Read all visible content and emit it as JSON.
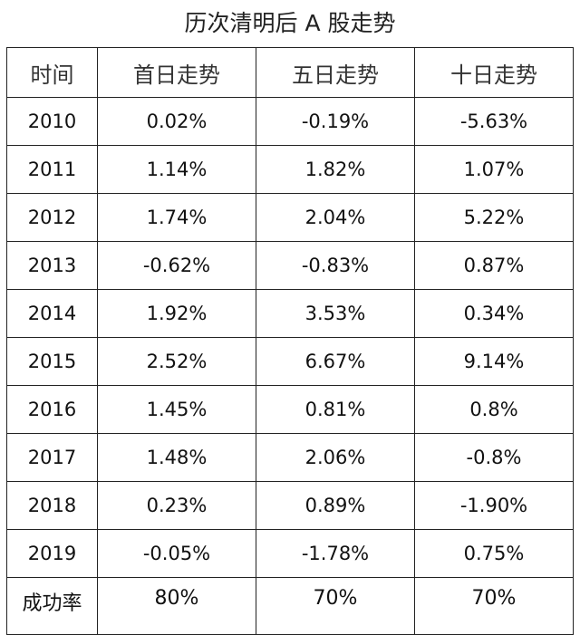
{
  "title": "历次清明后 A 股走势",
  "headers": [
    "时间",
    "首日走势",
    "五日走势",
    "十日走势"
  ],
  "rows": [
    {
      "year": "2010",
      "day1": "0.02%",
      "day5": "-0.19%",
      "day10": "-5.63%"
    },
    {
      "year": "2011",
      "day1": "1.14%",
      "day5": "1.82%",
      "day10": "1.07%"
    },
    {
      "year": "2012",
      "day1": "1.74%",
      "day5": "2.04%",
      "day10": "5.22%"
    },
    {
      "year": "2013",
      "day1": "-0.62%",
      "day5": "-0.83%",
      "day10": "0.87%"
    },
    {
      "year": "2014",
      "day1": "1.92%",
      "day5": "3.53%",
      "day10": "0.34%"
    },
    {
      "year": "2015",
      "day1": "2.52%",
      "day5": "6.67%",
      "day10": "9.14%"
    },
    {
      "year": "2016",
      "day1": "1.45%",
      "day5": "0.81%",
      "day10": "0.8%"
    },
    {
      "year": "2017",
      "day1": "1.48%",
      "day5": "2.06%",
      "day10": "-0.8%"
    },
    {
      "year": "2018",
      "day1": "0.23%",
      "day5": "0.89%",
      "day10": "-1.90%"
    },
    {
      "year": "2019",
      "day1": "-0.05%",
      "day5": "-1.78%",
      "day10": "0.75%"
    }
  ],
  "footer": {
    "label": "成功率",
    "day1": "80%",
    "day5": "70%",
    "day10": "70%"
  }
}
